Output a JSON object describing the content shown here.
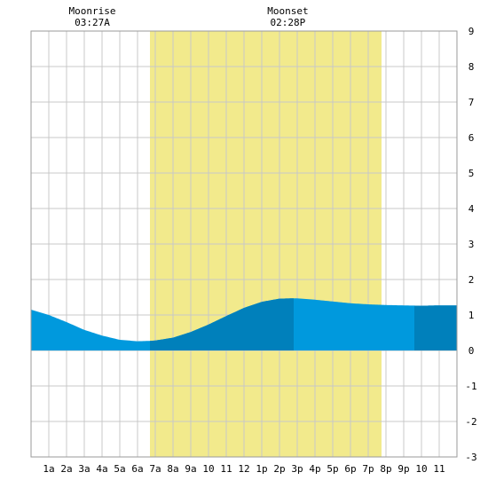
{
  "chart_data": {
    "type": "area",
    "title": "",
    "xlabel": "",
    "ylabel": "",
    "x_ticks": [
      "1a",
      "2a",
      "3a",
      "4a",
      "5a",
      "6a",
      "7a",
      "8a",
      "9a",
      "10",
      "11",
      "12",
      "1p",
      "2p",
      "3p",
      "4p",
      "5p",
      "6p",
      "7p",
      "8p",
      "9p",
      "10",
      "11"
    ],
    "y_ticks": [
      "9",
      "8",
      "7",
      "6",
      "5",
      "4",
      "3",
      "2",
      "1",
      "0",
      "-1",
      "-2",
      "-3"
    ],
    "xlim": [
      0,
      24
    ],
    "ylim": [
      -3,
      9
    ],
    "grid": true,
    "daylight": {
      "start_hour": 6.7,
      "end_hour": 19.75,
      "color": "#f2ea8c"
    },
    "events": [
      {
        "label": "Moonrise",
        "time": "03:27A",
        "hour": 3.45
      },
      {
        "label": "Moonset",
        "time": "02:28P",
        "hour": 14.47
      }
    ],
    "tide_series": {
      "name": "",
      "color": "#0099dd",
      "dark_color": "#0080bb",
      "x": [
        0,
        1,
        2,
        3,
        4,
        5,
        6,
        6.7,
        7,
        8,
        9,
        10,
        11,
        12,
        13,
        14,
        14.8,
        15,
        16,
        17,
        18,
        19,
        20,
        21,
        22,
        23,
        24
      ],
      "y": [
        1.15,
        1.0,
        0.8,
        0.58,
        0.42,
        0.3,
        0.26,
        0.27,
        0.28,
        0.36,
        0.52,
        0.73,
        0.97,
        1.2,
        1.37,
        1.46,
        1.47,
        1.47,
        1.43,
        1.38,
        1.33,
        1.3,
        1.28,
        1.27,
        1.26,
        1.27,
        1.27
      ]
    },
    "dark_bands": [
      [
        6.7,
        14.8
      ],
      [
        21.6,
        24
      ]
    ]
  }
}
